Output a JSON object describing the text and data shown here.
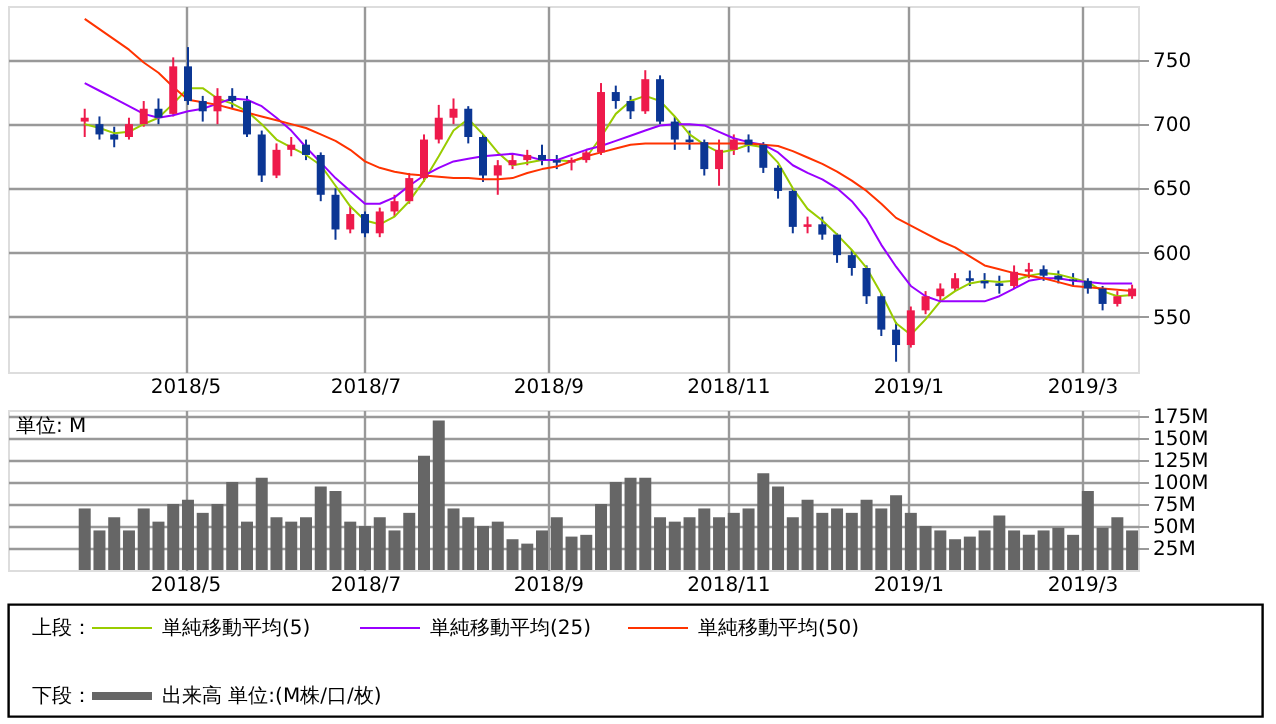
{
  "chart_data": [
    {
      "type": "candlestick",
      "x": [
        "2018-03-28",
        "2018-04-02",
        "2018-04-07",
        "2018-04-12",
        "2018-04-17",
        "2018-04-22",
        "2018-04-27",
        "2018-05-02",
        "2018-05-07",
        "2018-05-12",
        "2018-05-17",
        "2018-05-22",
        "2018-05-27",
        "2018-06-01",
        "2018-06-06",
        "2018-06-11",
        "2018-06-16",
        "2018-06-21",
        "2018-06-26",
        "2018-07-01",
        "2018-07-06",
        "2018-07-11",
        "2018-07-16",
        "2018-07-21",
        "2018-07-26",
        "2018-07-31",
        "2018-08-05",
        "2018-08-10",
        "2018-08-15",
        "2018-08-20",
        "2018-08-25",
        "2018-08-30",
        "2018-09-04",
        "2018-09-09",
        "2018-09-14",
        "2018-09-19",
        "2018-09-24",
        "2018-09-29",
        "2018-10-04",
        "2018-10-09",
        "2018-10-14",
        "2018-10-19",
        "2018-10-24",
        "2018-10-29",
        "2018-11-03",
        "2018-11-08",
        "2018-11-13",
        "2018-11-18",
        "2018-11-23",
        "2018-11-28",
        "2018-12-03",
        "2018-12-08",
        "2018-12-13",
        "2018-12-18",
        "2018-12-23",
        "2018-12-28",
        "2019-01-02",
        "2019-01-07",
        "2019-01-12",
        "2019-01-17",
        "2019-01-22",
        "2019-01-27",
        "2019-02-01",
        "2019-02-06",
        "2019-02-11",
        "2019-02-16",
        "2019-02-21",
        "2019-02-26",
        "2019-03-03",
        "2019-03-08",
        "2019-03-13",
        "2019-03-18"
      ],
      "ohlc": [
        [
          702,
          712,
          690,
          705
        ],
        [
          700,
          706,
          688,
          692
        ],
        [
          692,
          698,
          682,
          688
        ],
        [
          690,
          705,
          688,
          700
        ],
        [
          700,
          718,
          698,
          712
        ],
        [
          712,
          720,
          700,
          705
        ],
        [
          708,
          752,
          706,
          745
        ],
        [
          745,
          760,
          715,
          718
        ],
        [
          718,
          722,
          702,
          710
        ],
        [
          710,
          728,
          700,
          722
        ],
        [
          722,
          728,
          712,
          718
        ],
        [
          718,
          722,
          690,
          692
        ],
        [
          692,
          695,
          655,
          660
        ],
        [
          660,
          685,
          658,
          680
        ],
        [
          680,
          690,
          675,
          684
        ],
        [
          684,
          688,
          672,
          676
        ],
        [
          676,
          678,
          640,
          645
        ],
        [
          645,
          650,
          610,
          618
        ],
        [
          618,
          636,
          615,
          630
        ],
        [
          630,
          632,
          612,
          615
        ],
        [
          615,
          635,
          612,
          632
        ],
        [
          632,
          645,
          628,
          640
        ],
        [
          640,
          662,
          638,
          658
        ],
        [
          658,
          692,
          655,
          688
        ],
        [
          688,
          715,
          685,
          705
        ],
        [
          705,
          720,
          700,
          712
        ],
        [
          712,
          714,
          685,
          690
        ],
        [
          690,
          692,
          655,
          660
        ],
        [
          660,
          672,
          645,
          668
        ],
        [
          668,
          676,
          665,
          672
        ],
        [
          672,
          680,
          668,
          676
        ],
        [
          676,
          684,
          668,
          672
        ],
        [
          672,
          676,
          665,
          670
        ],
        [
          670,
          674,
          664,
          672
        ],
        [
          672,
          680,
          670,
          678
        ],
        [
          678,
          732,
          676,
          725
        ],
        [
          725,
          730,
          712,
          718
        ],
        [
          718,
          722,
          704,
          710
        ],
        [
          710,
          742,
          708,
          735
        ],
        [
          735,
          738,
          700,
          702
        ],
        [
          702,
          706,
          680,
          688
        ],
        [
          688,
          695,
          680,
          686
        ],
        [
          686,
          688,
          660,
          665
        ],
        [
          665,
          688,
          652,
          680
        ],
        [
          680,
          692,
          676,
          688
        ],
        [
          688,
          692,
          678,
          684
        ],
        [
          684,
          686,
          662,
          666
        ],
        [
          666,
          668,
          642,
          648
        ],
        [
          648,
          650,
          615,
          620
        ],
        [
          620,
          628,
          615,
          622
        ],
        [
          622,
          628,
          610,
          614
        ],
        [
          614,
          615,
          592,
          598
        ],
        [
          598,
          602,
          582,
          588
        ],
        [
          588,
          590,
          560,
          566
        ],
        [
          566,
          568,
          535,
          540
        ],
        [
          540,
          546,
          515,
          528
        ],
        [
          528,
          558,
          526,
          555
        ],
        [
          555,
          570,
          552,
          566
        ],
        [
          566,
          576,
          562,
          572
        ],
        [
          572,
          584,
          570,
          580
        ],
        [
          580,
          586,
          574,
          578
        ],
        [
          578,
          584,
          572,
          576
        ],
        [
          576,
          582,
          568,
          574
        ],
        [
          574,
          590,
          572,
          585
        ],
        [
          585,
          592,
          580,
          587
        ],
        [
          587,
          590,
          578,
          582
        ],
        [
          582,
          586,
          576,
          579
        ],
        [
          579,
          584,
          574,
          578
        ],
        [
          578,
          580,
          568,
          572
        ],
        [
          572,
          574,
          555,
          560
        ],
        [
          560,
          570,
          558,
          566
        ],
        [
          566,
          575,
          564,
          572
        ]
      ],
      "colors": [
        "#ee1a4b",
        "#0b3694",
        "#0b3694",
        "#ee1a4b",
        "#ee1a4b",
        "#0b3694",
        "#ee1a4b",
        "#0b3694",
        "#0b3694",
        "#ee1a4b",
        "#0b3694",
        "#0b3694",
        "#0b3694",
        "#ee1a4b",
        "#ee1a4b",
        "#0b3694",
        "#0b3694",
        "#0b3694",
        "#ee1a4b",
        "#0b3694",
        "#ee1a4b",
        "#ee1a4b",
        "#ee1a4b",
        "#ee1a4b",
        "#ee1a4b",
        "#ee1a4b",
        "#0b3694",
        "#0b3694",
        "#ee1a4b",
        "#ee1a4b",
        "#ee1a4b",
        "#0b3694",
        "#0b3694",
        "#ee1a4b",
        "#ee1a4b",
        "#ee1a4b",
        "#0b3694",
        "#0b3694",
        "#ee1a4b",
        "#0b3694",
        "#0b3694",
        "#0b3694",
        "#0b3694",
        "#ee1a4b",
        "#ee1a4b",
        "#0b3694",
        "#0b3694",
        "#0b3694",
        "#0b3694",
        "#ee1a4b",
        "#0b3694",
        "#0b3694",
        "#0b3694",
        "#0b3694",
        "#0b3694",
        "#0b3694",
        "#ee1a4b",
        "#ee1a4b",
        "#ee1a4b",
        "#ee1a4b",
        "#0b3694",
        "#0b3694",
        "#0b3694",
        "#ee1a4b",
        "#ee1a4b",
        "#0b3694",
        "#0b3694",
        "#0b3694",
        "#0b3694",
        "#0b3694",
        "#ee1a4b",
        "#ee1a4b"
      ],
      "series": [
        {
          "name": "単純移動平均(5)",
          "type": "line",
          "color": "#99cc00",
          "values": [
            700,
            697,
            693,
            694,
            700,
            705,
            716,
            728,
            728,
            720,
            716,
            710,
            700,
            688,
            682,
            676,
            668,
            652,
            636,
            625,
            622,
            628,
            640,
            656,
            675,
            695,
            704,
            692,
            678,
            668,
            670,
            672,
            672,
            671,
            674,
            690,
            708,
            718,
            722,
            718,
            706,
            692,
            684,
            678,
            680,
            684,
            682,
            670,
            650,
            634,
            625,
            614,
            602,
            588,
            568,
            545,
            536,
            548,
            562,
            570,
            576,
            578,
            577,
            578,
            582,
            584,
            583,
            580,
            577,
            570,
            566,
            567
          ]
        },
        {
          "name": "単純移動平均(25)",
          "type": "line",
          "color": "#9900ff",
          "values": [
            732,
            726,
            720,
            714,
            708,
            705,
            707,
            710,
            712,
            716,
            720,
            719,
            714,
            705,
            695,
            682,
            670,
            658,
            648,
            638,
            638,
            643,
            652,
            660,
            666,
            671,
            673,
            675,
            676,
            677,
            675,
            672,
            672,
            676,
            680,
            683,
            687,
            691,
            695,
            699,
            700,
            700,
            699,
            694,
            689,
            686,
            684,
            678,
            668,
            662,
            657,
            650,
            640,
            626,
            606,
            589,
            574,
            566,
            562,
            562,
            562,
            562,
            566,
            572,
            578,
            580,
            580,
            578,
            577,
            576,
            576,
            576
          ]
        },
        {
          "name": "単純移動平均(50)",
          "type": "line",
          "color": "#ff3300",
          "values": [
            782,
            774,
            766,
            758,
            748,
            740,
            729,
            719,
            717,
            715,
            712,
            709,
            706,
            703,
            700,
            697,
            692,
            687,
            680,
            671,
            666,
            663,
            661,
            660,
            659,
            658,
            658,
            657,
            657,
            658,
            662,
            665,
            667,
            671,
            675,
            678,
            681,
            684,
            685,
            685,
            685,
            685,
            685,
            685,
            685,
            685,
            684,
            683,
            679,
            674,
            669,
            663,
            656,
            648,
            638,
            627,
            621,
            615,
            609,
            604,
            597,
            590,
            587,
            584,
            582,
            580,
            577,
            574,
            573,
            572,
            571,
            570
          ]
        }
      ],
      "xlim": [
        "2018-03-02",
        "2019-03-20"
      ],
      "xticks": [
        {
          "value": "2018-05-01",
          "label": "2018/5"
        },
        {
          "value": "2018-07-01",
          "label": "2018/7"
        },
        {
          "value": "2018-09-01",
          "label": "2018/9"
        },
        {
          "value": "2018-11-01",
          "label": "2018/11"
        },
        {
          "value": "2019-01-01",
          "label": "2019/1"
        },
        {
          "value": "2019-03-01",
          "label": "2019/3"
        }
      ],
      "ylim": [
        507,
        792
      ],
      "yticks": [
        550,
        600,
        650,
        700,
        750
      ],
      "grid": true,
      "legend": "bottom",
      "legend_title": "上段："
    },
    {
      "type": "bar",
      "x": [
        "2018-03-28",
        "2018-04-02",
        "2018-04-07",
        "2018-04-12",
        "2018-04-17",
        "2018-04-22",
        "2018-04-27",
        "2018-05-02",
        "2018-05-07",
        "2018-05-12",
        "2018-05-17",
        "2018-05-22",
        "2018-05-27",
        "2018-06-01",
        "2018-06-06",
        "2018-06-11",
        "2018-06-16",
        "2018-06-21",
        "2018-06-26",
        "2018-07-01",
        "2018-07-06",
        "2018-07-11",
        "2018-07-16",
        "2018-07-21",
        "2018-07-26",
        "2018-07-31",
        "2018-08-05",
        "2018-08-10",
        "2018-08-15",
        "2018-08-20",
        "2018-08-25",
        "2018-08-30",
        "2018-09-04",
        "2018-09-09",
        "2018-09-14",
        "2018-09-19",
        "2018-09-24",
        "2018-09-29",
        "2018-10-04",
        "2018-10-09",
        "2018-10-14",
        "2018-10-19",
        "2018-10-24",
        "2018-10-29",
        "2018-11-03",
        "2018-11-08",
        "2018-11-13",
        "2018-11-18",
        "2018-11-23",
        "2018-11-28",
        "2018-12-03",
        "2018-12-08",
        "2018-12-13",
        "2018-12-18",
        "2018-12-23",
        "2018-12-28",
        "2019-01-02",
        "2019-01-07",
        "2019-01-12",
        "2019-01-17",
        "2019-01-22",
        "2019-01-27",
        "2019-02-01",
        "2019-02-06",
        "2019-02-11",
        "2019-02-16",
        "2019-02-21",
        "2019-02-26",
        "2019-03-03",
        "2019-03-08",
        "2019-03-13",
        "2019-03-18"
      ],
      "series": [
        {
          "name": "出来高 単位:(M株/口/枚)",
          "color": "#666666",
          "values": [
            70,
            45,
            60,
            45,
            70,
            55,
            75,
            80,
            65,
            75,
            100,
            55,
            105,
            60,
            55,
            60,
            95,
            90,
            55,
            50,
            60,
            45,
            65,
            130,
            170,
            70,
            60,
            50,
            55,
            35,
            30,
            45,
            60,
            38,
            40,
            75,
            100,
            105,
            105,
            60,
            55,
            60,
            70,
            60,
            65,
            70,
            110,
            95,
            60,
            80,
            65,
            70,
            65,
            80,
            70,
            85,
            65,
            50,
            45,
            35,
            38,
            45,
            62,
            45,
            40,
            45,
            48,
            40,
            90,
            48,
            60,
            45
          ]
        }
      ],
      "ylabel": "単位: M",
      "xlim": [
        "2018-03-02",
        "2019-03-20"
      ],
      "xticks": [
        {
          "value": "2018-05-01",
          "label": "2018/5"
        },
        {
          "value": "2018-07-01",
          "label": "2018/7"
        },
        {
          "value": "2018-09-01",
          "label": "2018/9"
        },
        {
          "value": "2018-11-01",
          "label": "2018/11"
        },
        {
          "value": "2019-01-01",
          "label": "2019/1"
        },
        {
          "value": "2019-03-01",
          "label": "2019/3"
        }
      ],
      "ylim": [
        0,
        182
      ],
      "yticks": [
        {
          "value": 25,
          "label": "25M"
        },
        {
          "value": 50,
          "label": "50M"
        },
        {
          "value": 75,
          "label": "75M"
        },
        {
          "value": 100,
          "label": "100M"
        },
        {
          "value": 125,
          "label": "125M"
        },
        {
          "value": 150,
          "label": "150M"
        },
        {
          "value": 175,
          "label": "175M"
        }
      ],
      "grid": true,
      "legend": "bottom",
      "legend_title": "下段："
    }
  ]
}
